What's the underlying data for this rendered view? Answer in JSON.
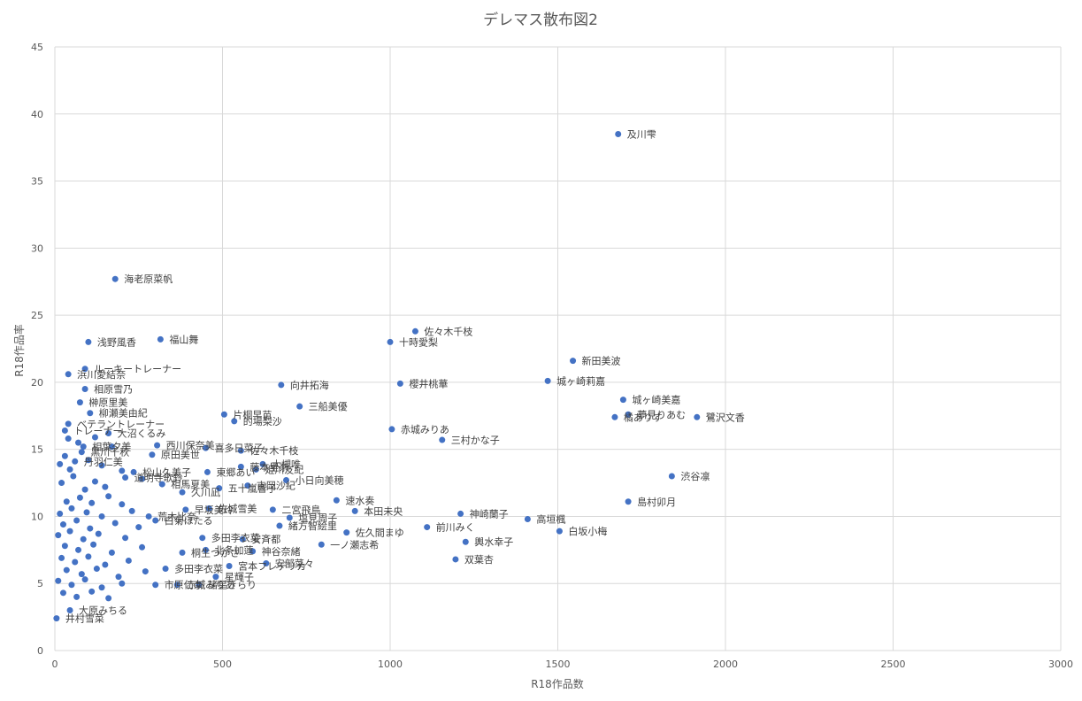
{
  "chart_data": {
    "type": "scatter",
    "title": "デレマス散布図2",
    "xlabel": "R18作品数",
    "ylabel": "R18作品率",
    "xlim": [
      0,
      3000
    ],
    "ylim": [
      0,
      45
    ],
    "xticks": [
      "0",
      "500",
      "1000",
      "1500",
      "2000",
      "2500",
      "3000"
    ],
    "yticks": [
      "0",
      "5",
      "10",
      "15",
      "20",
      "25",
      "30",
      "35",
      "40",
      "45"
    ],
    "grid": true,
    "marker_color": "#4472C4",
    "points": [
      {
        "x": 1680,
        "y": 38.5,
        "label": "及川雫"
      },
      {
        "x": 180,
        "y": 27.7,
        "label": "海老原菜帆"
      },
      {
        "x": 100,
        "y": 23.0,
        "label": "浅野風香"
      },
      {
        "x": 315,
        "y": 23.2,
        "label": "福山舞"
      },
      {
        "x": 1075,
        "y": 23.8,
        "label": "佐々木千枝"
      },
      {
        "x": 1000,
        "y": 23.0,
        "label": "十時愛梨"
      },
      {
        "x": 1545,
        "y": 21.6,
        "label": "新田美波"
      },
      {
        "x": 90,
        "y": 21.0,
        "label": "ルーキートレーナー"
      },
      {
        "x": 40,
        "y": 20.6,
        "label": "浜川愛結奈"
      },
      {
        "x": 675,
        "y": 19.8,
        "label": "向井拓海"
      },
      {
        "x": 1030,
        "y": 19.9,
        "label": "櫻井桃華"
      },
      {
        "x": 1470,
        "y": 20.1,
        "label": "城ヶ崎莉嘉"
      },
      {
        "x": 90,
        "y": 19.5,
        "label": "相原雪乃"
      },
      {
        "x": 75,
        "y": 18.5,
        "label": "榊原里美"
      },
      {
        "x": 730,
        "y": 18.2,
        "label": "三船美優"
      },
      {
        "x": 1695,
        "y": 18.7,
        "label": "城ヶ崎美嘉"
      },
      {
        "x": 105,
        "y": 17.7,
        "label": "柳瀬美由紀"
      },
      {
        "x": 505,
        "y": 17.6,
        "label": "片桐早苗"
      },
      {
        "x": 535,
        "y": 17.1,
        "label": "的場梨沙"
      },
      {
        "x": 1710,
        "y": 17.6,
        "label": "夢見りあむ"
      },
      {
        "x": 1670,
        "y": 17.4,
        "label": "橘ありす"
      },
      {
        "x": 1915,
        "y": 17.4,
        "label": "鷺沢文香"
      },
      {
        "x": 40,
        "y": 16.9,
        "label": "ベテラントレーナー"
      },
      {
        "x": 1005,
        "y": 16.5,
        "label": "赤城みりあ"
      },
      {
        "x": 1155,
        "y": 15.7,
        "label": "三村かな子"
      },
      {
        "x": 160,
        "y": 16.2,
        "label": "大沼くるみ"
      },
      {
        "x": 30,
        "y": 16.4,
        "label": "トレーナー"
      },
      {
        "x": 450,
        "y": 15.1,
        "label": "喜多日菜子"
      },
      {
        "x": 555,
        "y": 14.9,
        "label": "佐々木千枝"
      },
      {
        "x": 305,
        "y": 15.3,
        "label": "西川保奈美"
      },
      {
        "x": 85,
        "y": 15.2,
        "label": "相葉夕美"
      },
      {
        "x": 80,
        "y": 14.8,
        "label": "黒川千秋"
      },
      {
        "x": 290,
        "y": 14.6,
        "label": "原田美世"
      },
      {
        "x": 60,
        "y": 14.1,
        "label": "丹羽仁美"
      },
      {
        "x": 555,
        "y": 13.7,
        "label": "藤本里奈"
      },
      {
        "x": 620,
        "y": 13.9,
        "label": "大槻唯"
      },
      {
        "x": 600,
        "y": 13.5,
        "label": "姫川友紀"
      },
      {
        "x": 455,
        "y": 13.3,
        "label": "東郷あい"
      },
      {
        "x": 235,
        "y": 13.3,
        "label": "松山久美子"
      },
      {
        "x": 210,
        "y": 12.9,
        "label": "道明寺歌鈴"
      },
      {
        "x": 690,
        "y": 12.7,
        "label": "小日向美穂"
      },
      {
        "x": 320,
        "y": 12.4,
        "label": "相馬夏美"
      },
      {
        "x": 490,
        "y": 12.1,
        "label": "五十嵐響子"
      },
      {
        "x": 575,
        "y": 12.3,
        "label": "吉岡沙紀"
      },
      {
        "x": 380,
        "y": 11.8,
        "label": "久川凪"
      },
      {
        "x": 1840,
        "y": 13.0,
        "label": "渋谷凛"
      },
      {
        "x": 840,
        "y": 11.2,
        "label": "速水奏"
      },
      {
        "x": 1710,
        "y": 11.1,
        "label": "島村卯月"
      },
      {
        "x": 895,
        "y": 10.4,
        "label": "本田未央"
      },
      {
        "x": 650,
        "y": 10.5,
        "label": "二宮飛鳥"
      },
      {
        "x": 460,
        "y": 10.6,
        "label": "佐城雪美"
      },
      {
        "x": 1210,
        "y": 10.2,
        "label": "神崎蘭子"
      },
      {
        "x": 1410,
        "y": 9.8,
        "label": "高垣楓"
      },
      {
        "x": 700,
        "y": 9.9,
        "label": "塩見周子"
      },
      {
        "x": 390,
        "y": 10.5,
        "label": "早坂美玲"
      },
      {
        "x": 280,
        "y": 10.0,
        "label": "荒木比奈"
      },
      {
        "x": 300,
        "y": 9.7,
        "label": "白菊ほたる"
      },
      {
        "x": 670,
        "y": 9.3,
        "label": "緒方智絵里"
      },
      {
        "x": 1110,
        "y": 9.2,
        "label": "前川みく"
      },
      {
        "x": 870,
        "y": 8.8,
        "label": "佐久間まゆ"
      },
      {
        "x": 1505,
        "y": 8.9,
        "label": "白坂小梅"
      },
      {
        "x": 1225,
        "y": 8.1,
        "label": "輿水幸子"
      },
      {
        "x": 795,
        "y": 7.9,
        "label": "一ノ瀬志希"
      },
      {
        "x": 440,
        "y": 8.4,
        "label": "多田李衣菜"
      },
      {
        "x": 560,
        "y": 8.3,
        "label": "安斉都"
      },
      {
        "x": 450,
        "y": 7.5,
        "label": "北条加蓮"
      },
      {
        "x": 590,
        "y": 7.4,
        "label": "神谷奈緒"
      },
      {
        "x": 380,
        "y": 7.3,
        "label": "桐生つかさ"
      },
      {
        "x": 1195,
        "y": 6.8,
        "label": "双葉杏"
      },
      {
        "x": 630,
        "y": 6.5,
        "label": "安部菜々"
      },
      {
        "x": 520,
        "y": 6.3,
        "label": "宮本フレデリカ"
      },
      {
        "x": 330,
        "y": 6.1,
        "label": "多田李衣菜"
      },
      {
        "x": 480,
        "y": 5.5,
        "label": "星輝子"
      },
      {
        "x": 430,
        "y": 4.9,
        "label": "諸星きらり"
      },
      {
        "x": 300,
        "y": 4.9,
        "label": "市原仁奈"
      },
      {
        "x": 365,
        "y": 4.9,
        "label": "赤城みりあ"
      },
      {
        "x": 45,
        "y": 3.0,
        "label": "大原みちる"
      },
      {
        "x": 5,
        "y": 2.4,
        "label": "井村雪菜"
      },
      {
        "x": 20,
        "y": 12.5
      },
      {
        "x": 55,
        "y": 13.0
      },
      {
        "x": 90,
        "y": 12.0
      },
      {
        "x": 120,
        "y": 12.6
      },
      {
        "x": 150,
        "y": 12.2
      },
      {
        "x": 35,
        "y": 11.1
      },
      {
        "x": 75,
        "y": 11.4
      },
      {
        "x": 110,
        "y": 11.0
      },
      {
        "x": 160,
        "y": 11.5
      },
      {
        "x": 200,
        "y": 10.9
      },
      {
        "x": 15,
        "y": 10.2
      },
      {
        "x": 50,
        "y": 10.6
      },
      {
        "x": 95,
        "y": 10.3
      },
      {
        "x": 140,
        "y": 10.0
      },
      {
        "x": 230,
        "y": 10.4
      },
      {
        "x": 25,
        "y": 9.4
      },
      {
        "x": 65,
        "y": 9.7
      },
      {
        "x": 105,
        "y": 9.1
      },
      {
        "x": 180,
        "y": 9.5
      },
      {
        "x": 250,
        "y": 9.2
      },
      {
        "x": 10,
        "y": 8.6
      },
      {
        "x": 45,
        "y": 8.9
      },
      {
        "x": 85,
        "y": 8.3
      },
      {
        "x": 130,
        "y": 8.7
      },
      {
        "x": 210,
        "y": 8.4
      },
      {
        "x": 30,
        "y": 7.8
      },
      {
        "x": 70,
        "y": 7.5
      },
      {
        "x": 115,
        "y": 7.9
      },
      {
        "x": 170,
        "y": 7.3
      },
      {
        "x": 260,
        "y": 7.7
      },
      {
        "x": 20,
        "y": 6.9
      },
      {
        "x": 60,
        "y": 6.6
      },
      {
        "x": 100,
        "y": 7.0
      },
      {
        "x": 150,
        "y": 6.4
      },
      {
        "x": 220,
        "y": 6.7
      },
      {
        "x": 35,
        "y": 6.0
      },
      {
        "x": 80,
        "y": 5.7
      },
      {
        "x": 125,
        "y": 6.1
      },
      {
        "x": 190,
        "y": 5.5
      },
      {
        "x": 270,
        "y": 5.9
      },
      {
        "x": 10,
        "y": 5.2
      },
      {
        "x": 50,
        "y": 4.9
      },
      {
        "x": 90,
        "y": 5.3
      },
      {
        "x": 140,
        "y": 4.7
      },
      {
        "x": 200,
        "y": 5.0
      },
      {
        "x": 25,
        "y": 4.3
      },
      {
        "x": 65,
        "y": 4.0
      },
      {
        "x": 110,
        "y": 4.4
      },
      {
        "x": 160,
        "y": 3.9
      },
      {
        "x": 40,
        "y": 15.8
      },
      {
        "x": 70,
        "y": 15.5
      },
      {
        "x": 120,
        "y": 15.9
      },
      {
        "x": 170,
        "y": 15.2
      },
      {
        "x": 30,
        "y": 14.5
      },
      {
        "x": 100,
        "y": 14.2
      },
      {
        "x": 140,
        "y": 13.8
      },
      {
        "x": 45,
        "y": 13.5
      },
      {
        "x": 200,
        "y": 13.4
      },
      {
        "x": 260,
        "y": 12.8
      },
      {
        "x": 15,
        "y": 13.9
      }
    ]
  }
}
